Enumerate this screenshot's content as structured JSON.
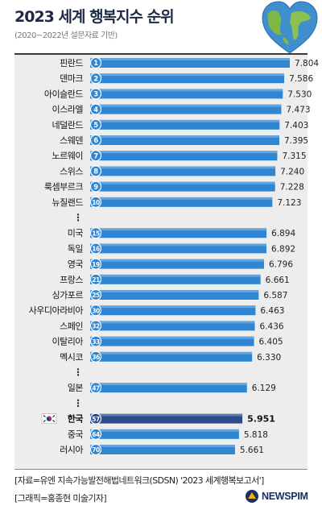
{
  "header": {
    "title": "2023 세계 행복지수 순위",
    "subtitle": "(2020~2022년 설문자료 기반)"
  },
  "footer": {
    "source": "[자료=유엔 지속가능발전해법네트워크(SDSN) '2023 세계행복보고서']",
    "credit": "[그래픽=홍종현 미술기자]",
    "logo": "NEWSPIM"
  },
  "colors": {
    "bar": "#2f86d2",
    "bar_highlight": "#2e4c8c",
    "circle": "#2f86d2",
    "circle_highlight": "#2e4c8c",
    "panel": "#ededed",
    "title": "#1d2a44"
  },
  "chart_data": {
    "type": "bar",
    "orientation": "horizontal",
    "highlight": "한국",
    "highlight_flag": "south-korea-flag",
    "separator": "⋮",
    "rows": [
      {
        "country": "핀란드",
        "rank": "1",
        "value": 7.804
      },
      {
        "country": "덴마크",
        "rank": "2",
        "value": 7.586
      },
      {
        "country": "아이슬란드",
        "rank": "3",
        "value": 7.53
      },
      {
        "country": "이스라엘",
        "rank": "4",
        "value": 7.473
      },
      {
        "country": "네덜란드",
        "rank": "5",
        "value": 7.403
      },
      {
        "country": "스웨덴",
        "rank": "6",
        "value": 7.395
      },
      {
        "country": "노르웨이",
        "rank": "7",
        "value": 7.315
      },
      {
        "country": "스위스",
        "rank": "8",
        "value": 7.24
      },
      {
        "country": "룩셈부르크",
        "rank": "9",
        "value": 7.228
      },
      {
        "country": "뉴질랜드",
        "rank": "10",
        "value": 7.123
      },
      {
        "separator": true
      },
      {
        "country": "미국",
        "rank": "15",
        "value": 6.894
      },
      {
        "country": "독일",
        "rank": "16",
        "value": 6.892
      },
      {
        "country": "영국",
        "rank": "19",
        "value": 6.796
      },
      {
        "country": "프랑스",
        "rank": "21",
        "value": 6.661
      },
      {
        "country": "싱가포르",
        "rank": "25",
        "value": 6.587
      },
      {
        "country": "사우디아라비아",
        "rank": "30",
        "value": 6.463
      },
      {
        "country": "스페인",
        "rank": "32",
        "value": 6.436
      },
      {
        "country": "이탈리아",
        "rank": "33",
        "value": 6.405
      },
      {
        "country": "멕시코",
        "rank": "36",
        "value": 6.33
      },
      {
        "separator": true
      },
      {
        "country": "일본",
        "rank": "47",
        "value": 6.129
      },
      {
        "separator": true
      },
      {
        "country": "한국",
        "rank": "57",
        "value": 5.951
      },
      {
        "country": "중국",
        "rank": "64",
        "value": 5.818
      },
      {
        "country": "러시아",
        "rank": "70",
        "value": 5.661
      }
    ]
  }
}
